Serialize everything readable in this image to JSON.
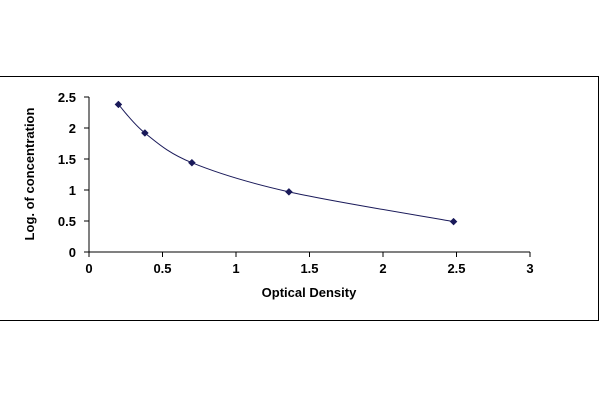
{
  "chart_data": {
    "type": "scatter",
    "title": "",
    "xlabel": "Optical Density",
    "ylabel": "Log. of concentration",
    "xlim": [
      0,
      3
    ],
    "ylim": [
      0,
      2.5
    ],
    "x_ticks": [
      "0",
      "0.5",
      "1",
      "1.5",
      "2",
      "2.5",
      "3"
    ],
    "y_ticks": [
      "0",
      "0.5",
      "1",
      "1.5",
      "2",
      "2.5"
    ],
    "grid": false,
    "legend": "none",
    "marker": "diamond",
    "trendline": "smooth curve",
    "colors": {
      "marker": "#1a1a5a",
      "line": "#1a1a5a",
      "axis": "#000000"
    },
    "series": [
      {
        "x": [
          0.2,
          0.38,
          0.7,
          1.36,
          2.48
        ],
        "y": [
          2.38,
          1.92,
          1.44,
          0.97,
          0.49
        ]
      }
    ]
  }
}
